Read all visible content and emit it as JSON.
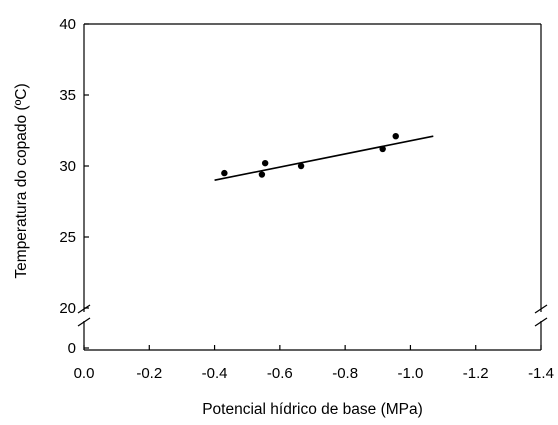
{
  "chart_data": {
    "type": "scatter",
    "xlabel": "Potencial hídrico de base (MPa)",
    "ylabel": "Temperatura do copado (ºC)",
    "x_axis": {
      "range": [
        0.0,
        -1.4
      ],
      "ticks": [
        0.0,
        -0.2,
        -0.4,
        -0.6,
        -0.8,
        -1.0,
        -1.2,
        -1.4
      ],
      "tick_labels": [
        "0.0",
        "-0.2",
        "-0.4",
        "-0.6",
        "-0.8",
        "-1.0",
        "-1.2",
        "-1.4"
      ]
    },
    "y_axis": {
      "broken": true,
      "upper_range": [
        20,
        40
      ],
      "upper_ticks": [
        20,
        25,
        30,
        35,
        40
      ],
      "upper_tick_labels": [
        "20",
        "25",
        "30",
        "35",
        "40"
      ],
      "lower_ticks": [
        0
      ],
      "lower_tick_labels": [
        "0"
      ]
    },
    "points": [
      {
        "x": -0.43,
        "y": 29.5
      },
      {
        "x": -0.545,
        "y": 29.4
      },
      {
        "x": -0.555,
        "y": 30.2
      },
      {
        "x": -0.665,
        "y": 30.0
      },
      {
        "x": -0.915,
        "y": 31.2
      },
      {
        "x": -0.955,
        "y": 32.1
      }
    ],
    "fit_line": {
      "x": [
        -0.4,
        -1.07
      ],
      "y": [
        29.0,
        32.1
      ]
    },
    "grid": false,
    "legend": "none"
  }
}
